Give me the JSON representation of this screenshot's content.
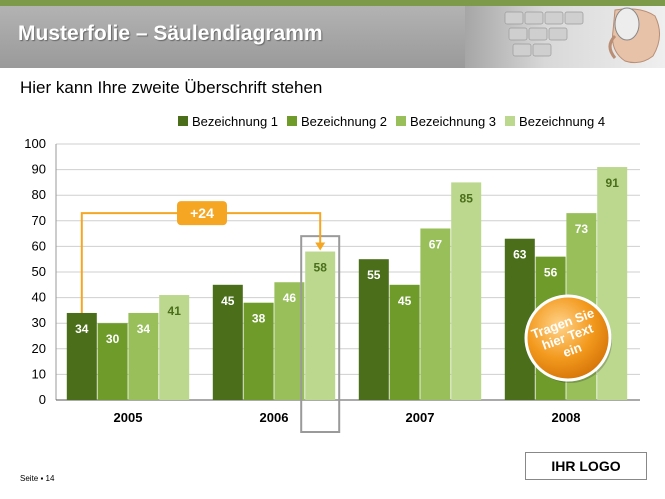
{
  "slide": {
    "title": "Musterfolie – Säulendiagramm",
    "subtitle": "Hier kann Ihre zweite Überschrift stehen",
    "page_label": "Seite ▪ 14",
    "logo": "IHR LOGO"
  },
  "callout": {
    "label": "+24",
    "color": "#f5a623"
  },
  "badge": {
    "text_lines": [
      "Tragen Sie",
      "hier Text",
      "ein"
    ],
    "color": "#f39a1e"
  },
  "chart_data": {
    "type": "bar",
    "title": "",
    "xlabel": "",
    "ylabel": "",
    "categories": [
      "2005",
      "2006",
      "2007",
      "2008"
    ],
    "series": [
      {
        "name": "Bezeichnung 1",
        "values": [
          34,
          45,
          55,
          63
        ],
        "color": "#4a6e1a",
        "label_color": "#ffffff"
      },
      {
        "name": "Bezeichnung 2",
        "values": [
          30,
          38,
          45,
          56
        ],
        "color": "#6f9b2a",
        "label_color": "#ffffff"
      },
      {
        "name": "Bezeichnung 3",
        "values": [
          34,
          46,
          67,
          73
        ],
        "color": "#98bf5a",
        "label_color": "#ffffff"
      },
      {
        "name": "Bezeichnung 4",
        "values": [
          41,
          58,
          85,
          91
        ],
        "color": "#bcd88e",
        "label_color": "#4a6e1a"
      }
    ],
    "ylim": [
      0,
      100
    ],
    "yticks": [
      0,
      10,
      20,
      30,
      40,
      50,
      60,
      70,
      80,
      90,
      100
    ],
    "grid": true,
    "legend_position": "top-right"
  }
}
